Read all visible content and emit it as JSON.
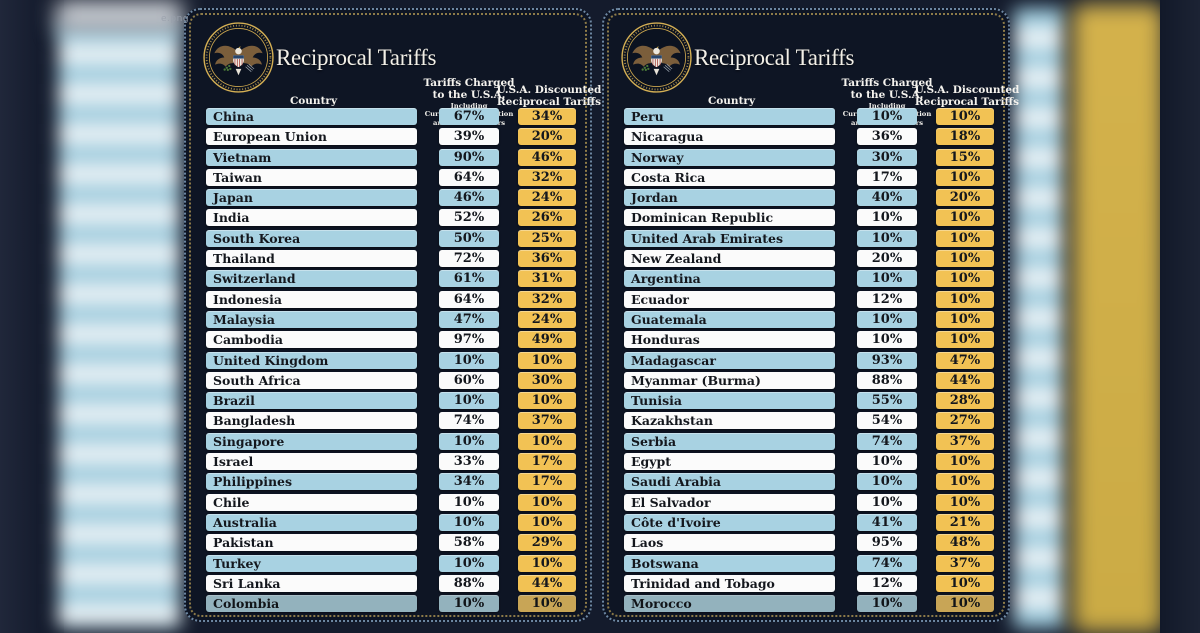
{
  "watermark": "e.png",
  "header": {
    "title": "Reciprocal Tariffs",
    "country_label": "Country",
    "charged_label": "Tariffs Charged\nto the U.S.A.",
    "charged_sublabel": "Including\nCurrency Manipulation\nand Trade Barriers",
    "discounted_label": "U.S.A. Discounted\nReciprocal Tariffs"
  },
  "colors": {
    "page_background": "#141b2c",
    "panel_background": "#0e1524",
    "row_blue": "#a8d2e2",
    "row_white": "#fbfbfb",
    "gold_cell": "#f2c254",
    "outer_border_dots": "#6d87a2",
    "inner_border_dots": "#8d7b49",
    "title_text": "#f2efe7",
    "seal_ring_gold": "#d4af54",
    "background_gold_column": "#d0ae48",
    "background_stripe_blue": "#9ecbdd"
  },
  "icons": {
    "seal": "presidential-seal-icon"
  },
  "chart_data": {
    "type": "table",
    "title": "Reciprocal Tariffs",
    "units": "percent",
    "columns": [
      "Country",
      "Tariffs Charged to the U.S.A. Including Currency Manipulation and Trade Barriers",
      "U.S.A. Discounted Reciprocal Tariffs"
    ],
    "panels": [
      {
        "rows": [
          [
            "China",
            67,
            34
          ],
          [
            "European Union",
            39,
            20
          ],
          [
            "Vietnam",
            90,
            46
          ],
          [
            "Taiwan",
            64,
            32
          ],
          [
            "Japan",
            46,
            24
          ],
          [
            "India",
            52,
            26
          ],
          [
            "South Korea",
            50,
            25
          ],
          [
            "Thailand",
            72,
            36
          ],
          [
            "Switzerland",
            61,
            31
          ],
          [
            "Indonesia",
            64,
            32
          ],
          [
            "Malaysia",
            47,
            24
          ],
          [
            "Cambodia",
            97,
            49
          ],
          [
            "United Kingdom",
            10,
            10
          ],
          [
            "South Africa",
            60,
            30
          ],
          [
            "Brazil",
            10,
            10
          ],
          [
            "Bangladesh",
            74,
            37
          ],
          [
            "Singapore",
            10,
            10
          ],
          [
            "Israel",
            33,
            17
          ],
          [
            "Philippines",
            34,
            17
          ],
          [
            "Chile",
            10,
            10
          ],
          [
            "Australia",
            10,
            10
          ],
          [
            "Pakistan",
            58,
            29
          ],
          [
            "Turkey",
            10,
            10
          ],
          [
            "Sri Lanka",
            88,
            44
          ],
          [
            "Colombia",
            10,
            10
          ]
        ]
      },
      {
        "rows": [
          [
            "Peru",
            10,
            10
          ],
          [
            "Nicaragua",
            36,
            18
          ],
          [
            "Norway",
            30,
            15
          ],
          [
            "Costa Rica",
            17,
            10
          ],
          [
            "Jordan",
            40,
            20
          ],
          [
            "Dominican Republic",
            10,
            10
          ],
          [
            "United Arab Emirates",
            10,
            10
          ],
          [
            "New Zealand",
            20,
            10
          ],
          [
            "Argentina",
            10,
            10
          ],
          [
            "Ecuador",
            12,
            10
          ],
          [
            "Guatemala",
            10,
            10
          ],
          [
            "Honduras",
            10,
            10
          ],
          [
            "Madagascar",
            93,
            47
          ],
          [
            "Myanmar (Burma)",
            88,
            44
          ],
          [
            "Tunisia",
            55,
            28
          ],
          [
            "Kazakhstan",
            54,
            27
          ],
          [
            "Serbia",
            74,
            37
          ],
          [
            "Egypt",
            10,
            10
          ],
          [
            "Saudi Arabia",
            10,
            10
          ],
          [
            "El Salvador",
            10,
            10
          ],
          [
            "Côte d'Ivoire",
            41,
            21
          ],
          [
            "Laos",
            95,
            48
          ],
          [
            "Botswana",
            74,
            37
          ],
          [
            "Trinidad and Tobago",
            12,
            10
          ],
          [
            "Morocco",
            10,
            10
          ]
        ]
      }
    ]
  }
}
